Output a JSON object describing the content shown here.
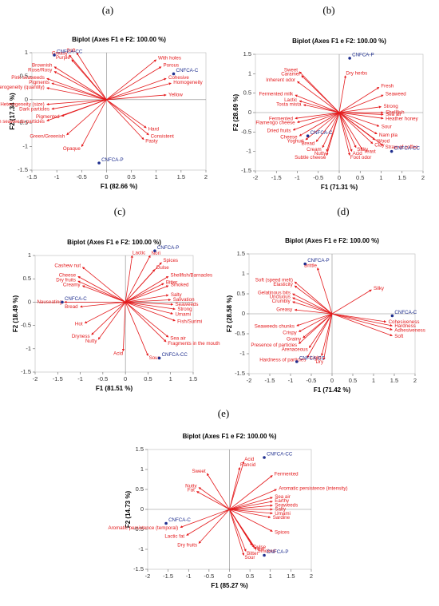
{
  "chart_data": [
    {
      "type": "biplot",
      "panel": "(a)",
      "title": "Biplot (Axes F1 e F2: 100.00 %)",
      "x_label": "F1 (82.66 %)",
      "y_label": "F2 (17.34 %)",
      "xlim": [
        -1.5,
        2
      ],
      "xticks": [
        -1.5,
        -1,
        -0.5,
        0,
        0.5,
        1,
        1.5,
        2
      ],
      "ylim": [
        -1.5,
        1
      ],
      "yticks": [
        -1.5,
        -1,
        -0.5,
        0,
        0.5,
        1
      ],
      "vector_color": "#e41a1c",
      "point_color": "#1f2f8f",
      "vectors": {
        "labels": [
          "Soft",
          "Greasy",
          "Purple",
          "Brownish",
          "Rose/Rosy",
          "Pink seaweeds",
          "Pigments",
          "Heterogeneity (quantity)",
          "Heterogeneity (size)",
          "Dark particles",
          "Pigmented",
          "White green seaweeds particles",
          "Green/Greenish",
          "Opaque",
          "With holes",
          "Porous",
          "Cohesive",
          "Homogeneity",
          "Yellow",
          "Hard",
          "Consistent",
          "Pasty"
        ],
        "x": [
          -0.6,
          -0.75,
          -0.7,
          -1.05,
          -1.05,
          -1.2,
          -1.1,
          -1.2,
          -1.2,
          -1.1,
          -0.9,
          -1.2,
          -0.8,
          -0.5,
          1.0,
          1.1,
          1.2,
          1.3,
          1.2,
          0.8,
          0.85,
          0.75
        ],
        "y": [
          1.0,
          0.95,
          0.85,
          0.7,
          0.6,
          0.45,
          0.35,
          0.25,
          -0.1,
          -0.2,
          -0.35,
          -0.45,
          -0.75,
          -1.0,
          0.85,
          0.7,
          0.45,
          0.35,
          0.1,
          -0.6,
          -0.75,
          -0.85
        ]
      },
      "points": {
        "labels": [
          "CNFCA-CC",
          "CNFCA-C",
          "CNFCA-P"
        ],
        "x": [
          -1.05,
          1.35,
          -0.15
        ],
        "y": [
          0.95,
          0.55,
          -1.35
        ]
      }
    },
    {
      "type": "biplot",
      "panel": "(b)",
      "title": "Biplot (Axes F1 e F2: 100.00 %)",
      "x_label": "F1 (71.31 %)",
      "y_label": "F2 (28.69 %)",
      "xlim": [
        -2,
        2
      ],
      "xticks": [
        -2,
        -1.5,
        -1,
        -0.5,
        0,
        0.5,
        1,
        1.5,
        2
      ],
      "ylim": [
        -1.5,
        1.5
      ],
      "yticks": [
        -1.5,
        -1,
        -0.5,
        0,
        0.5,
        1,
        1.5
      ],
      "vector_color": "#e41a1c",
      "point_color": "#1f2f8f",
      "vectors": {
        "labels": [
          "Sweet",
          "Caramel",
          "Inherent odor",
          "Dry herbs",
          "Fermented milk",
          "Lactic",
          "Tosta mista",
          "Fresh",
          "Seaweed",
          "Strong",
          "Shellfish",
          "Sea air",
          "Heather honey",
          "Sour",
          "Nam pla",
          "Wood",
          "Clay",
          "Straw of coffee",
          "Salty",
          "Yeast",
          "Acid",
          "Foot odor",
          "Fermented",
          "Flamengo cheese",
          "Dried fruits",
          "Cheese",
          "Yoghurt",
          "Bread",
          "Cream",
          "Nutty",
          "Subtle cheese"
        ],
        "x": [
          -0.95,
          -0.9,
          -1.0,
          0.15,
          -1.05,
          -0.95,
          -0.85,
          0.95,
          1.05,
          1.0,
          1.05,
          1.05,
          1.05,
          0.95,
          0.9,
          0.85,
          0.8,
          1.05,
          0.4,
          0.55,
          0.3,
          0.25,
          -1.05,
          -1.0,
          -1.1,
          -0.95,
          -0.8,
          -0.55,
          -0.4,
          -0.3,
          -0.3
        ],
        "y": [
          1.05,
          0.95,
          0.8,
          0.95,
          0.45,
          0.3,
          0.2,
          0.65,
          0.45,
          0.15,
          0.0,
          -0.05,
          -0.15,
          -0.35,
          -0.55,
          -0.7,
          -0.8,
          -0.85,
          -0.9,
          -0.95,
          -1.0,
          -1.1,
          -0.15,
          -0.25,
          -0.45,
          -0.6,
          -0.7,
          -0.75,
          -0.9,
          -1.0,
          -1.1
        ]
      },
      "points": {
        "labels": [
          "CNFCA-P",
          "CNFCA-C",
          "CNFCA-CC"
        ],
        "x": [
          0.25,
          -0.75,
          1.25
        ],
        "y": [
          1.4,
          -0.6,
          -1.0
        ]
      }
    },
    {
      "type": "biplot",
      "panel": "(c)",
      "title": "Biplot (Axes F1 e F2: 100.00 %)",
      "x_label": "F1 (81.51 %)",
      "y_label": "F2 (18.49 %)",
      "xlim": [
        -2,
        1.5
      ],
      "xticks": [
        -2,
        -1.5,
        -1,
        -0.5,
        0,
        0.5,
        1,
        1.5
      ],
      "ylim": [
        -1.5,
        1
      ],
      "yticks": [
        -1.5,
        -1,
        -0.5,
        0,
        0.5,
        1
      ],
      "vector_color": "#e41a1c",
      "point_color": "#1f2f8f",
      "vectors": {
        "labels": [
          "Cashew nut",
          "Cheese",
          "Dry fruits",
          "Creamy",
          "Nauseating",
          "Bread",
          "Hot",
          "Dryness",
          "Nutty",
          "Acid",
          "Lactic",
          "Nori",
          "Spices",
          "Dulse",
          "Shellfish/Barnacles",
          "Bitter",
          "Smoked",
          "Salty",
          "Salivation",
          "Seaweeds",
          "Strong",
          "Umami",
          "Fish/Surimi",
          "Sea air",
          "Fragments in the mouth",
          "Sour"
        ],
        "x": [
          -0.95,
          -1.05,
          -1.05,
          -0.95,
          -1.35,
          -1.0,
          -0.9,
          -0.75,
          -0.6,
          -0.05,
          0.15,
          0.55,
          0.8,
          0.65,
          0.95,
          0.85,
          0.95,
          0.95,
          1.0,
          1.05,
          1.1,
          1.05,
          1.1,
          0.95,
          0.9,
          0.5
        ],
        "y": [
          0.75,
          0.55,
          0.45,
          0.35,
          0.0,
          -0.1,
          -0.45,
          -0.7,
          -0.8,
          -1.05,
          1.0,
          1.0,
          0.85,
          0.7,
          0.55,
          0.4,
          0.35,
          0.15,
          0.05,
          -0.05,
          -0.15,
          -0.25,
          -0.4,
          -0.75,
          -0.85,
          -1.15
        ]
      },
      "points": {
        "labels": [
          "CNFCA-P",
          "CNFCA-C",
          "CNFCA-CC"
        ],
        "x": [
          0.65,
          -1.4,
          0.75
        ],
        "y": [
          1.1,
          0.0,
          -1.2
        ]
      }
    },
    {
      "type": "biplot",
      "panel": "(d)",
      "title": "Biplot (Axes F1 e F2: 100.00 %)",
      "x_label": "F1 (71.42 %)",
      "y_label": "F2 (28.58 %)",
      "xlim": [
        -2,
        2
      ],
      "xticks": [
        -2,
        -1.5,
        -1,
        -0.5,
        0,
        0.5,
        1,
        1.5,
        2
      ],
      "ylim": [
        -1.5,
        1.5
      ],
      "yticks": [
        -1.5,
        -1,
        -0.5,
        0,
        0.5,
        1,
        1.5
      ],
      "vector_color": "#e41a1c",
      "point_color": "#1f2f8f",
      "vectors": {
        "labels": [
          "Brittle",
          "Soft (speed melt)",
          "Elasticity",
          "Gelatinous bits",
          "Unctuous",
          "Crumbly",
          "Greasy",
          "Seaweeds chunks",
          "Crispy",
          "Grainy",
          "Presence of particles",
          "Arenaceous",
          "Hardness of particles",
          "Light",
          "Dry",
          "Silky",
          "Cohesiveness",
          "Hardness",
          "Adhesiveness",
          "Soft"
        ],
        "x": [
          -0.35,
          -0.9,
          -0.9,
          -0.95,
          -0.95,
          -0.95,
          -0.9,
          -0.85,
          -0.8,
          -0.7,
          -0.8,
          -0.55,
          -0.6,
          -0.25,
          -0.2,
          0.95,
          1.3,
          1.45,
          1.45,
          1.45
        ],
        "y": [
          1.15,
          0.8,
          0.7,
          0.5,
          0.4,
          0.3,
          0.1,
          -0.3,
          -0.45,
          -0.6,
          -0.75,
          -0.85,
          -1.1,
          -1.05,
          -1.15,
          0.6,
          -0.2,
          -0.3,
          -0.4,
          -0.55
        ]
      },
      "points": {
        "labels": [
          "CNFCA-P",
          "CNFCA-C",
          "CNFCA-CC"
        ],
        "x": [
          -0.65,
          1.45,
          -0.85
        ],
        "y": [
          1.25,
          -0.05,
          -1.2
        ]
      }
    },
    {
      "type": "biplot",
      "panel": "(e)",
      "title": "Biplot (Axes F1 e F2: 100.00 %)",
      "x_label": "F1 (85.27 %)",
      "y_label": "F2 (14.73 %)",
      "xlim": [
        -2,
        2
      ],
      "xticks": [
        -2,
        -1.5,
        -1,
        -0.5,
        0,
        0.5,
        1,
        1.5,
        2
      ],
      "ylim": [
        -1.5,
        1.5
      ],
      "yticks": [
        -1.5,
        -1,
        -0.5,
        0,
        0.5,
        1,
        1.5
      ],
      "vector_color": "#e41a1c",
      "point_color": "#1f2f8f",
      "vectors": {
        "labels": [
          "Acid",
          "Rancid",
          "Sweet",
          "Nutty",
          "Fat",
          "Fermented",
          "Aromatic persistence (intensity)",
          "Sea air",
          "Earthy",
          "Seaweeds",
          "Salty",
          "Umami",
          "Sardine",
          "Spices",
          "Dulse",
          "Nori",
          "Smoked",
          "Bitter",
          "Sour",
          "Aromatic persistence (temporal)",
          "Lactic fat",
          "Dry fruits"
        ],
        "x": [
          0.35,
          0.25,
          -0.55,
          -0.75,
          -0.8,
          1.05,
          1.15,
          1.05,
          1.05,
          1.05,
          1.05,
          1.05,
          1.0,
          1.05,
          0.55,
          0.6,
          0.65,
          0.4,
          0.35,
          -1.2,
          -1.05,
          -0.75
        ],
        "y": [
          1.2,
          1.05,
          0.9,
          0.55,
          0.45,
          0.85,
          0.5,
          0.3,
          0.2,
          0.1,
          0.0,
          -0.1,
          -0.2,
          -0.55,
          -0.9,
          -0.95,
          -1.0,
          -1.05,
          -1.15,
          -0.45,
          -0.65,
          -0.85
        ]
      },
      "points": {
        "labels": [
          "CNFCA-CC",
          "CNFCA-C",
          "CNFCA-P"
        ],
        "x": [
          0.85,
          -1.55,
          0.85
        ],
        "y": [
          1.3,
          -0.35,
          -1.15
        ]
      }
    }
  ]
}
